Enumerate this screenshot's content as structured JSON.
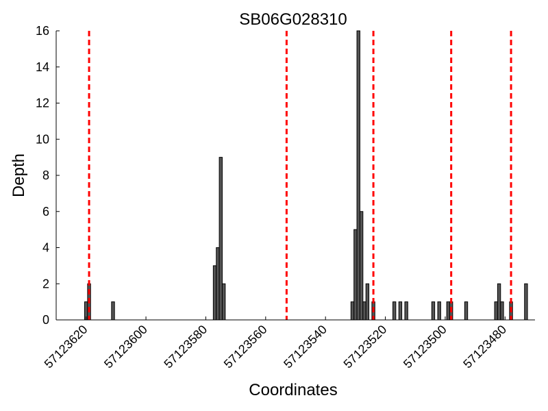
{
  "chart_data": {
    "type": "bar",
    "title": "SB06G028310",
    "xlabel": "Coordinates",
    "ylabel": "Depth",
    "x_reversed": true,
    "xlim": [
      57123630,
      57123470
    ],
    "ylim": [
      0,
      16
    ],
    "bar_width": 1,
    "xticks": [
      57123620,
      57123600,
      57123580,
      57123560,
      57123540,
      57123520,
      57123500,
      57123480
    ],
    "yticks": [
      0,
      2,
      4,
      6,
      8,
      10,
      12,
      14,
      16
    ],
    "grid": false,
    "bar_color": "#555555",
    "marker_color": "#ff0000",
    "marker_lines": [
      57123619,
      57123553,
      57123524,
      57123498,
      57123478
    ],
    "series": [
      {
        "x": [
          57123620,
          57123619,
          57123611,
          57123577,
          57123576,
          57123575,
          57123574,
          57123531,
          57123530,
          57123529,
          57123528,
          57123527,
          57123526,
          57123524,
          57123517,
          57123515,
          57123513,
          57123504,
          57123502,
          57123499,
          57123498,
          57123493,
          57123483,
          57123482,
          57123481,
          57123478,
          57123473
        ],
        "values": [
          1,
          2,
          1,
          3,
          4,
          9,
          2,
          1,
          5,
          16,
          6,
          1,
          2,
          1,
          1,
          1,
          1,
          1,
          1,
          1,
          1,
          1,
          1,
          2,
          1,
          1,
          2
        ]
      }
    ]
  }
}
